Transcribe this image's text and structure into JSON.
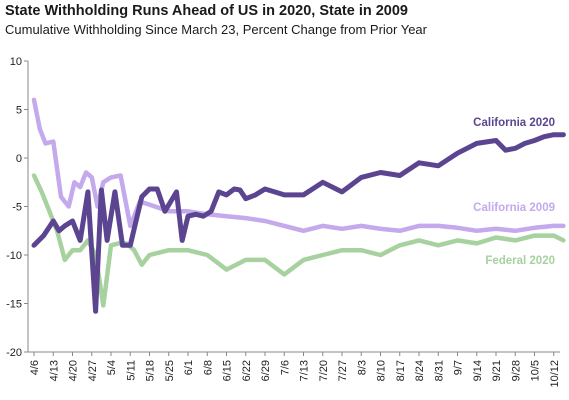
{
  "chart_data": {
    "type": "line",
    "title": "State Withholding Runs Ahead of US in 2020, State in 2009",
    "subtitle": "Cumulative Withholding Since March 23, Percent Change from Prior Year",
    "ylim": [
      -20,
      10
    ],
    "yticks": [
      "10",
      "5",
      "0",
      "-5",
      "-10",
      "-15",
      "-20"
    ],
    "xticks": [
      "4/6",
      "4/13",
      "4/20",
      "4/27",
      "5/4",
      "5/11",
      "5/18",
      "5/25",
      "6/1",
      "6/8",
      "6/15",
      "6/22",
      "6/29",
      "7/6",
      "7/13",
      "7/20",
      "7/27",
      "8/3",
      "8/10",
      "8/17",
      "8/24",
      "8/31",
      "9/7",
      "9/14",
      "9/21",
      "9/28",
      "10/5",
      "10/12"
    ],
    "series": [
      {
        "name": "California 2020",
        "color": "#5b4591",
        "x": [
          0,
          0.5,
          1,
          1.3,
          1.6,
          2.0,
          2.4,
          2.8,
          3.2,
          3.5,
          3.8,
          4.2,
          4.6,
          5.0,
          5.3,
          5.6,
          6.0,
          6.4,
          6.8,
          7.1,
          7.4,
          7.7,
          8.0,
          8.4,
          8.8,
          9.2,
          9.6,
          10.0,
          10.4,
          10.7,
          11.0,
          11.5,
          12.0,
          12.5,
          13.0,
          14.0,
          15.0,
          16.0,
          17.0,
          18.0,
          19.0,
          20.0,
          21.0,
          22.0,
          23.0,
          24.0,
          24.5,
          25.0,
          25.5,
          26.0,
          26.5,
          27.0,
          27.5
        ],
        "values": [
          -9,
          -8,
          -6.5,
          -7.5,
          -7,
          -6.5,
          -8.5,
          -3.5,
          -15.8,
          -3.3,
          -8.5,
          -3.5,
          -9,
          -9,
          -6.5,
          -4,
          -3.2,
          -3.2,
          -5.5,
          -4.5,
          -3.5,
          -8.5,
          -6,
          -5.8,
          -6,
          -5.5,
          -3.5,
          -3.8,
          -3.2,
          -3.3,
          -4.2,
          -3.8,
          -3.2,
          -3.5,
          -3.8,
          -3.8,
          -2.5,
          -3.5,
          -2,
          -1.5,
          -1.8,
          -0.5,
          -0.8,
          0.5,
          1.5,
          1.8,
          0.8,
          1.0,
          1.5,
          1.8,
          2.2,
          2.4,
          2.4
        ]
      },
      {
        "name": "California 2009",
        "color": "#c4a9ec",
        "x": [
          0,
          0.3,
          0.6,
          1.0,
          1.4,
          1.8,
          2.1,
          2.4,
          2.7,
          3.0,
          3.3,
          3.6,
          4.0,
          4.5,
          5.0,
          5.5,
          6.0,
          7.0,
          8.0,
          9.0,
          10.0,
          11.0,
          12.0,
          13.0,
          14.0,
          15.0,
          16.0,
          17.0,
          18.0,
          19.0,
          20.0,
          21.0,
          22.0,
          23.0,
          24.0,
          25.0,
          26.0,
          27.0,
          27.5
        ],
        "values": [
          6.0,
          3.0,
          1.5,
          1.7,
          -4,
          -5,
          -2.5,
          -3,
          -1.5,
          -2,
          -5,
          -2.5,
          -2,
          -1.8,
          -7,
          -4.5,
          -4.8,
          -5.5,
          -5.5,
          -5.8,
          -6,
          -6.2,
          -6.5,
          -7,
          -7.5,
          -7,
          -7.3,
          -7,
          -7.3,
          -7.5,
          -7,
          -7,
          -7.2,
          -7.5,
          -7.3,
          -7.5,
          -7.2,
          -7,
          -7
        ]
      },
      {
        "name": "Federal 2020",
        "color": "#a8d1a0",
        "x": [
          0,
          0.4,
          0.8,
          1.2,
          1.6,
          2.0,
          2.4,
          2.8,
          3.2,
          3.6,
          4.0,
          4.4,
          4.8,
          5.2,
          5.6,
          6.0,
          7.0,
          8.0,
          9.0,
          10.0,
          11.0,
          12.0,
          13.0,
          14.0,
          15.0,
          16.0,
          17.0,
          18.0,
          19.0,
          20.0,
          21.0,
          22.0,
          23.0,
          24.0,
          25.0,
          26.0,
          27.0,
          27.5
        ],
        "values": [
          -1.8,
          -3.5,
          -5.5,
          -7.5,
          -10.5,
          -9.5,
          -9.5,
          -8.5,
          -10,
          -15.2,
          -9,
          -8.8,
          -8.8,
          -9.5,
          -11,
          -10,
          -9.5,
          -9.5,
          -10,
          -11.5,
          -10.5,
          -10.5,
          -12,
          -10.5,
          -10,
          -9.5,
          -9.5,
          -10,
          -9,
          -8.5,
          -9,
          -8.5,
          -8.8,
          -8.2,
          -8.5,
          -8,
          -8,
          -8.5
        ]
      }
    ],
    "annotations": [
      {
        "series": "California 2020",
        "text": "California  2020"
      },
      {
        "series": "California 2009",
        "text": "California  2009"
      },
      {
        "series": "Federal 2020",
        "text": "Federal 2020"
      }
    ],
    "grid": false,
    "legend": "none"
  }
}
